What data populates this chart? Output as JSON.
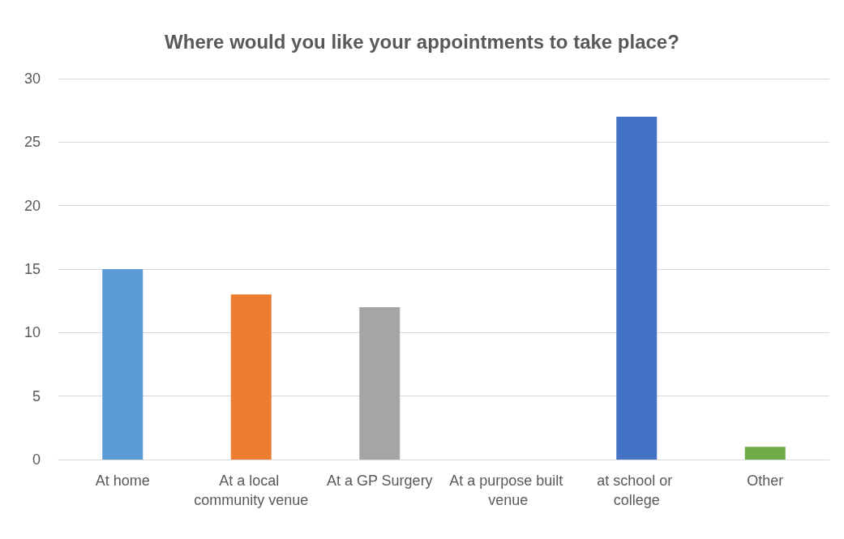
{
  "chart_data": {
    "type": "bar",
    "title": "Where would you like your appointments to take place?",
    "categories": [
      "At home",
      "At a local community venue",
      "At a GP Surgery",
      "At a purpose built venue",
      "at school or college",
      "Other"
    ],
    "values": [
      15,
      13,
      12,
      0,
      27,
      1
    ],
    "colors": [
      "#5b9bd5",
      "#ed7d31",
      "#a5a5a5",
      "#ffc000",
      "#4472c4",
      "#70ad47"
    ],
    "ylim": [
      0,
      30
    ],
    "yticks": [
      0,
      5,
      10,
      15,
      20,
      25,
      30
    ],
    "grid": "y"
  }
}
